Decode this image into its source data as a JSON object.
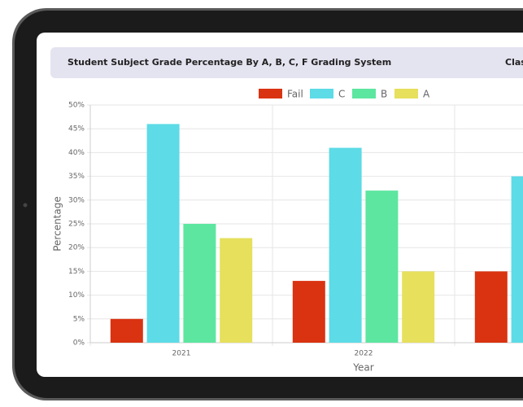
{
  "header": {
    "title": "Student Subject Grade Percentage By A, B, C, F Grading System",
    "right_text": "Class"
  },
  "chart_data": {
    "type": "bar",
    "categories": [
      "2021",
      "2022",
      null
    ],
    "series": [
      {
        "name": "Fail",
        "color": "#d93311",
        "values": [
          5,
          13,
          15
        ]
      },
      {
        "name": "C",
        "color": "#5ddbe6",
        "values": [
          46,
          41,
          35
        ]
      },
      {
        "name": "B",
        "color": "#5de6a0",
        "values": [
          25,
          32,
          null
        ]
      },
      {
        "name": "A",
        "color": "#e6e05d",
        "values": [
          22,
          15,
          null
        ]
      }
    ],
    "x_label": "Year",
    "y_label": "Percentage",
    "ylim": [
      0,
      50
    ],
    "yticks": [
      {
        "value": 0,
        "label": "0%"
      },
      {
        "value": 5,
        "label": "5%"
      },
      {
        "value": 10,
        "label": "10%"
      },
      {
        "value": 15,
        "label": "15%"
      },
      {
        "value": 20,
        "label": "20%"
      },
      {
        "value": 25,
        "label": "25%"
      },
      {
        "value": 30,
        "label": "30%"
      },
      {
        "value": 35,
        "label": "35%"
      },
      {
        "value": 40,
        "label": "40%"
      },
      {
        "value": 45,
        "label": "45%"
      },
      {
        "value": 50,
        "label": "50%"
      }
    ],
    "grid": true,
    "legend": "top"
  }
}
